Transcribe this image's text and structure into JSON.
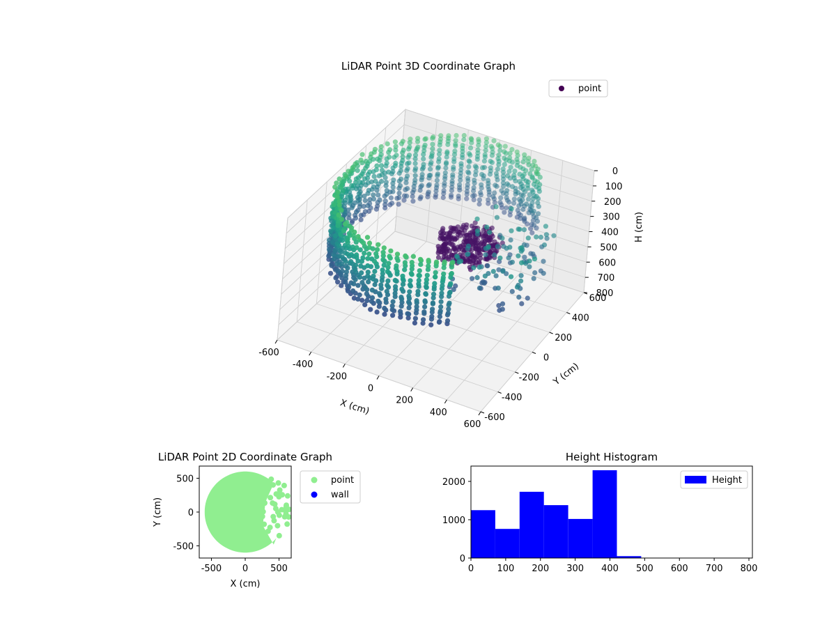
{
  "chart_data": [
    {
      "type": "scatter3d",
      "title": "LiDAR Point 3D Coordinate Graph",
      "xlabel": "X (cm)",
      "ylabel": "Y (cm)",
      "zlabel": "H (cm)",
      "xlim": [
        -600,
        600
      ],
      "ylim": [
        -600,
        600
      ],
      "zlim": [
        800,
        0
      ],
      "zinverted": true,
      "xticks": [
        -600,
        -400,
        -200,
        0,
        200,
        400,
        600
      ],
      "yticks": [
        -600,
        -400,
        -200,
        0,
        200,
        400,
        600
      ],
      "zticks": [
        0,
        100,
        200,
        300,
        400,
        500,
        600,
        700,
        800
      ],
      "grid": true,
      "colormap": "viridis",
      "legend": {
        "position": "top-right",
        "entries": [
          {
            "label": "point",
            "color": "#440154"
          }
        ]
      },
      "series": [
        {
          "name": "point",
          "shape": "semi-cylindrical wall of points (radius ~600 cm) open toward +X, heights ~0-420 cm, plus a dense cluster near the centre at ~350-400 cm height",
          "wall": {
            "radius": 600,
            "angle_deg": [
              55,
              305
            ],
            "h_range": [
              0,
              420
            ]
          },
          "cluster": {
            "center": [
              150,
              150
            ],
            "h_range": [
              330,
              420
            ]
          }
        }
      ]
    },
    {
      "type": "scatter",
      "title": "LiDAR Point 2D Coordinate Graph",
      "xlabel": "X (cm)",
      "ylabel": "Y (cm)",
      "xlim": [
        -680,
        680
      ],
      "ylim": [
        -680,
        680
      ],
      "xticks": [
        -500,
        0,
        500
      ],
      "yticks": [
        -500,
        0,
        500
      ],
      "legend": {
        "position": "right",
        "entries": [
          {
            "label": "point",
            "color": "#90ee90"
          },
          {
            "label": "wall",
            "color": "#0000ff"
          }
        ]
      },
      "series": [
        {
          "name": "point",
          "color": "#90ee90",
          "shape": "filled disc of radius ~600 cm, truncated on the right side"
        },
        {
          "name": "wall",
          "color": "#0000ff",
          "points": []
        }
      ]
    },
    {
      "type": "bar",
      "subtype": "histogram",
      "title": "Height Histogram",
      "xlabel": "",
      "ylabel": "",
      "xlim": [
        0,
        810
      ],
      "ylim": [
        0,
        2400
      ],
      "xticks": [
        0,
        100,
        200,
        300,
        400,
        500,
        600,
        700,
        800
      ],
      "yticks": [
        0,
        1000,
        2000
      ],
      "color": "#0000ff",
      "legend": {
        "position": "top-right",
        "entries": [
          {
            "label": "Height",
            "color": "#0000ff"
          }
        ]
      },
      "bins": [
        0,
        70,
        140,
        210,
        280,
        350,
        420,
        490,
        560,
        630,
        700,
        770
      ],
      "counts": [
        1250,
        760,
        1730,
        1380,
        1020,
        2290,
        50,
        0,
        0,
        0,
        0
      ]
    }
  ]
}
